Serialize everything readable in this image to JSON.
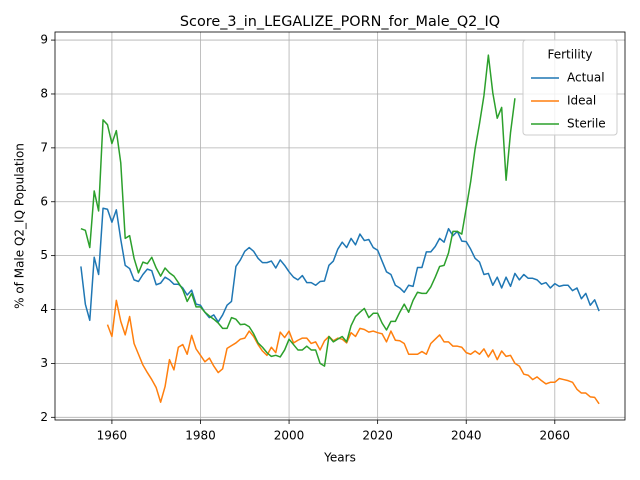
{
  "chart_data": {
    "type": "line",
    "title": "Score_3_in_LEGALIZE_PORN_for_Male_Q2_IQ",
    "xlabel": "Years",
    "ylabel": "% of Male Q2_IQ Population",
    "legend_title": "Fertility",
    "legend": "upper right",
    "grid": true,
    "xlim": [
      1947.15,
      2075.85
    ],
    "ylim": [
      1.95,
      9.15
    ],
    "xticks": [
      1960,
      1980,
      2000,
      2020,
      2040,
      2060
    ],
    "yticks": [
      2,
      3,
      4,
      5,
      6,
      7,
      8,
      9
    ],
    "x": [
      1953,
      1954,
      1955,
      1956,
      1957,
      1958,
      1959,
      1960,
      1961,
      1962,
      1963,
      1964,
      1965,
      1966,
      1967,
      1968,
      1969,
      1970,
      1971,
      1972,
      1973,
      1974,
      1975,
      1976,
      1977,
      1978,
      1979,
      1980,
      1981,
      1982,
      1983,
      1984,
      1985,
      1986,
      1987,
      1988,
      1989,
      1990,
      1991,
      1992,
      1993,
      1994,
      1995,
      1996,
      1997,
      1998,
      1999,
      2000,
      2001,
      2002,
      2003,
      2004,
      2005,
      2006,
      2007,
      2008,
      2009,
      2010,
      2011,
      2012,
      2013,
      2014,
      2015,
      2016,
      2017,
      2018,
      2019,
      2020,
      2021,
      2022,
      2023,
      2024,
      2025,
      2026,
      2027,
      2028,
      2029,
      2030,
      2031,
      2032,
      2033,
      2034,
      2035,
      2036,
      2037,
      2038,
      2039,
      2040,
      2041,
      2042,
      2043,
      2044,
      2045,
      2046,
      2047,
      2048,
      2049,
      2050,
      2051,
      2052,
      2053,
      2054,
      2055,
      2056,
      2057,
      2058,
      2059,
      2060,
      2061,
      2062,
      2063,
      2064,
      2065,
      2066,
      2067,
      2068,
      2069,
      2070
    ],
    "series": [
      {
        "name": "Actual",
        "color": "#1f77b4",
        "values": [
          4.8,
          4.1,
          3.8,
          4.97,
          4.65,
          5.88,
          5.86,
          5.62,
          5.85,
          5.3,
          4.82,
          4.76,
          4.55,
          4.52,
          4.65,
          4.75,
          4.72,
          4.46,
          4.49,
          4.6,
          4.55,
          4.47,
          4.47,
          4.4,
          4.27,
          4.36,
          4.1,
          4.08,
          3.95,
          3.85,
          3.9,
          3.77,
          3.9,
          4.08,
          4.15,
          4.8,
          4.92,
          5.08,
          5.15,
          5.08,
          4.95,
          4.87,
          4.87,
          4.9,
          4.77,
          4.92,
          4.82,
          4.7,
          4.6,
          4.55,
          4.63,
          4.5,
          4.5,
          4.45,
          4.52,
          4.53,
          4.82,
          4.9,
          5.12,
          5.25,
          5.15,
          5.32,
          5.2,
          5.4,
          5.28,
          5.3,
          5.15,
          5.1,
          4.9,
          4.7,
          4.65,
          4.45,
          4.4,
          4.32,
          4.45,
          4.43,
          4.78,
          4.78,
          5.07,
          5.07,
          5.17,
          5.32,
          5.25,
          5.5,
          5.37,
          5.45,
          5.27,
          5.26,
          5.12,
          4.95,
          4.88,
          4.65,
          4.67,
          4.45,
          4.6,
          4.4,
          4.6,
          4.43,
          4.67,
          4.55,
          4.65,
          4.58,
          4.58,
          4.55,
          4.47,
          4.5,
          4.4,
          4.48,
          4.43,
          4.45,
          4.45,
          4.35,
          4.4,
          4.2,
          4.3,
          4.08,
          4.18,
          3.97
        ]
      },
      {
        "name": "Ideal",
        "color": "#ff7f0e",
        "values": [
          null,
          null,
          null,
          null,
          null,
          null,
          3.72,
          3.5,
          4.17,
          3.78,
          3.53,
          3.87,
          3.37,
          3.17,
          2.97,
          2.83,
          2.7,
          2.55,
          2.28,
          2.57,
          3.07,
          2.88,
          3.3,
          3.35,
          3.17,
          3.52,
          3.27,
          3.15,
          3.03,
          3.1,
          2.95,
          2.83,
          2.9,
          3.28,
          3.33,
          3.38,
          3.45,
          3.47,
          3.6,
          3.5,
          3.35,
          3.23,
          3.15,
          3.3,
          3.2,
          3.58,
          3.48,
          3.6,
          3.38,
          3.43,
          3.47,
          3.47,
          3.37,
          3.4,
          3.25,
          3.42,
          3.5,
          3.42,
          3.47,
          3.45,
          3.38,
          3.57,
          3.5,
          3.65,
          3.63,
          3.58,
          3.6,
          3.57,
          3.55,
          3.4,
          3.6,
          3.43,
          3.42,
          3.37,
          3.17,
          3.17,
          3.17,
          3.22,
          3.17,
          3.37,
          3.45,
          3.53,
          3.4,
          3.4,
          3.32,
          3.32,
          3.3,
          3.2,
          3.17,
          3.23,
          3.17,
          3.27,
          3.12,
          3.25,
          3.07,
          3.23,
          3.13,
          3.15,
          3.0,
          2.95,
          2.8,
          2.78,
          2.7,
          2.75,
          2.68,
          2.62,
          2.65,
          2.65,
          2.72,
          2.7,
          2.68,
          2.65,
          2.52,
          2.45,
          2.45,
          2.38,
          2.37,
          2.25
        ]
      },
      {
        "name": "Sterile",
        "color": "#2ca02c",
        "values": [
          5.5,
          5.47,
          5.15,
          6.2,
          5.83,
          7.52,
          7.43,
          7.08,
          7.32,
          6.72,
          5.32,
          5.37,
          4.95,
          4.68,
          4.88,
          4.85,
          4.97,
          4.77,
          4.62,
          4.77,
          4.68,
          4.62,
          4.5,
          4.37,
          4.15,
          4.3,
          4.05,
          4.05,
          3.95,
          3.88,
          3.82,
          3.75,
          3.65,
          3.65,
          3.85,
          3.82,
          3.72,
          3.73,
          3.68,
          3.55,
          3.38,
          3.3,
          3.2,
          3.13,
          3.15,
          3.12,
          3.25,
          3.45,
          3.35,
          3.25,
          3.25,
          3.32,
          3.25,
          3.25,
          3.0,
          2.95,
          3.5,
          3.4,
          3.45,
          3.5,
          3.4,
          3.7,
          3.87,
          3.95,
          4.02,
          3.85,
          3.93,
          3.93,
          3.75,
          3.62,
          3.78,
          3.78,
          3.95,
          4.1,
          3.95,
          4.17,
          4.32,
          4.3,
          4.3,
          4.42,
          4.6,
          4.8,
          4.82,
          5.05,
          5.45,
          5.45,
          5.4,
          5.88,
          6.37,
          6.98,
          7.45,
          7.97,
          8.72,
          8.02,
          7.55,
          7.75,
          6.4,
          7.28,
          7.92,
          null,
          null,
          null,
          null,
          null,
          null,
          null,
          null,
          null,
          null,
          null,
          null,
          null,
          null,
          null,
          null,
          null,
          null,
          null
        ]
      }
    ]
  }
}
